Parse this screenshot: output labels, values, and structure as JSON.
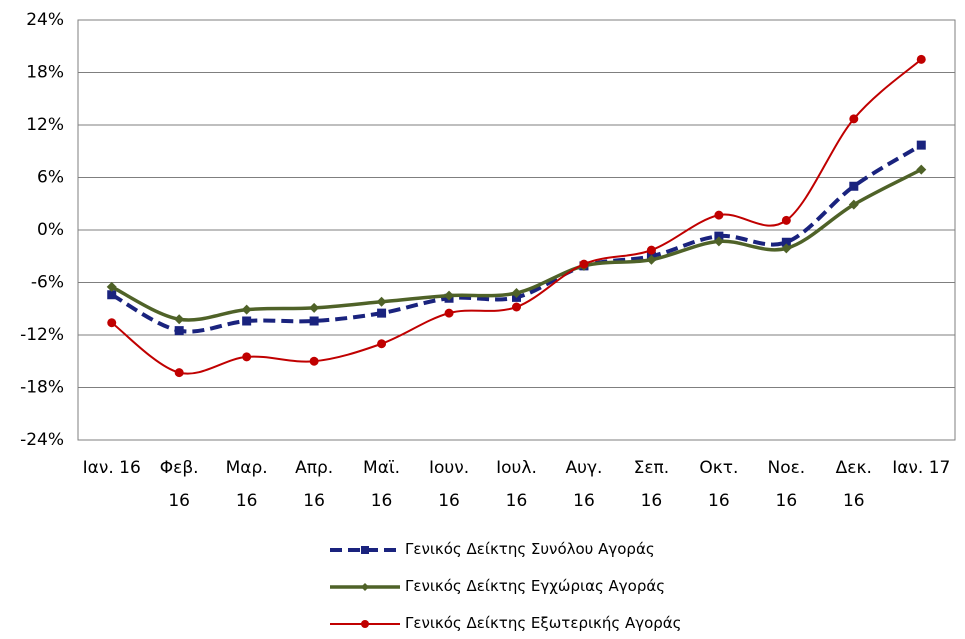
{
  "chart_data": {
    "type": "line",
    "categories": [
      "Ιαν. 16",
      "Φεβ. 16",
      "Μαρ. 16",
      "Απρ. 16",
      "Μαϊ. 16",
      "Ιουν. 16",
      "Ιουλ. 16",
      "Αυγ. 16",
      "Σεπ. 16",
      "Οκτ. 16",
      "Νοε. 16",
      "Δεκ. 16",
      "Ιαν. 17"
    ],
    "series": [
      {
        "name": "Γενικός Δείκτης Συνόλου Αγοράς",
        "color": "#1a237e",
        "line_style": "dashed",
        "line_width": 4,
        "marker": "square",
        "values": [
          -7.4,
          -11.5,
          -10.4,
          -10.4,
          -9.5,
          -7.8,
          -7.7,
          -4.1,
          -3.0,
          -0.7,
          -1.4,
          5.0,
          9.7
        ]
      },
      {
        "name": "Γενικός Δείκτης Εγχώριας Αγοράς",
        "color": "#4f6228",
        "line_style": "solid",
        "line_width": 3.5,
        "marker": "diamond",
        "values": [
          -6.5,
          -10.2,
          -9.1,
          -8.9,
          -8.2,
          -7.5,
          -7.2,
          -4.1,
          -3.4,
          -1.3,
          -2.1,
          2.9,
          6.9
        ]
      },
      {
        "name": "Γενικός Δείκτης Εξωτερικής Αγοράς",
        "color": "#c00000",
        "line_style": "solid",
        "line_width": 2,
        "marker": "circle",
        "values": [
          -10.6,
          -16.3,
          -14.5,
          -15.0,
          -13.0,
          -9.5,
          -8.8,
          -3.9,
          -2.3,
          1.7,
          1.1,
          12.7,
          19.5
        ]
      }
    ],
    "ylim": [
      -24,
      24
    ],
    "yticks": [
      {
        "value": -24,
        "label": "-24%"
      },
      {
        "value": -18,
        "label": "-18%"
      },
      {
        "value": -12,
        "label": "-12%"
      },
      {
        "value": -6,
        "label": "-6%"
      },
      {
        "value": 0,
        "label": "0%"
      },
      {
        "value": 6,
        "label": "6%"
      },
      {
        "value": 12,
        "label": "12%"
      },
      {
        "value": 18,
        "label": "18%"
      },
      {
        "value": 24,
        "label": "24%"
      }
    ],
    "grid": true
  }
}
